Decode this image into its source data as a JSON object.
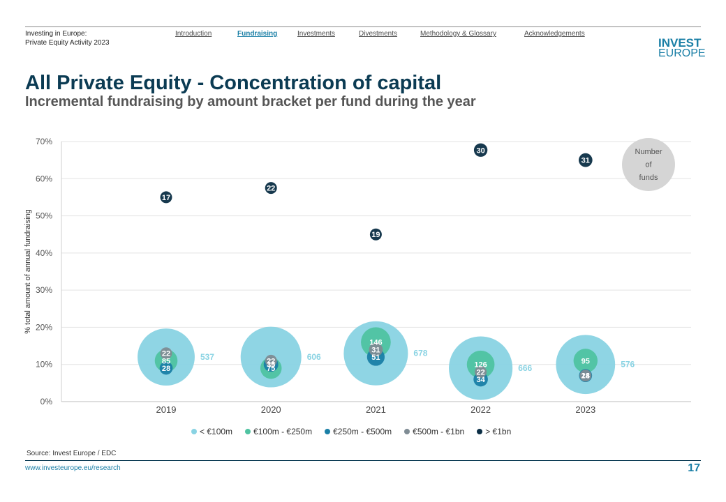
{
  "header": {
    "report_line1": "Investing in Europe:",
    "report_line2": "Private Equity Activity 2023",
    "nav": [
      "Introduction",
      "Fundraising",
      "Investments",
      "Divestments",
      "Methodology & Glossary",
      "Acknowledgements"
    ],
    "active_nav": "Fundraising",
    "logo_line1": "INVEST",
    "logo_line2": "EUROPE"
  },
  "page": {
    "title": "All Private Equity - Concentration of capital",
    "subtitle": "Incremental fundraising by amount bracket per fund during the year",
    "source": "Source: Invest Europe / EDC",
    "url": "www.investeurope.eu/research",
    "page_number": "17"
  },
  "chart_data": {
    "type": "scatter",
    "title": "",
    "xlabel": "",
    "ylabel": "% total amount of annual fundraising",
    "categories": [
      "2019",
      "2020",
      "2021",
      "2022",
      "2023"
    ],
    "yticks": [
      "0%",
      "10%",
      "20%",
      "30%",
      "40%",
      "50%",
      "60%",
      "70%"
    ],
    "ylim": [
      0,
      70
    ],
    "grid": true,
    "legend_position": "bottom",
    "size_legend_label": [
      "Number",
      "of",
      "funds"
    ],
    "series": [
      {
        "name": "< €100m",
        "color": "#89d3e3",
        "values": [
          12,
          12,
          13,
          9,
          10
        ],
        "funds": [
          537,
          606,
          678,
          666,
          576
        ]
      },
      {
        "name": "€100m - €250m",
        "color": "#4fc3a1",
        "values": [
          11,
          9,
          16,
          10,
          11
        ],
        "funds": [
          85,
          75,
          146,
          126,
          95
        ]
      },
      {
        "name": "€250m - €500m",
        "color": "#1a7fa6",
        "values": [
          9,
          10,
          12,
          6,
          7
        ],
        "funds": [
          28,
          35,
          51,
          34,
          28
        ]
      },
      {
        "name": "€500m - €1bn",
        "color": "#7f8c94",
        "values": [
          13,
          11,
          14,
          8,
          7
        ],
        "funds": [
          22,
          22,
          31,
          22,
          14
        ]
      },
      {
        "name": "> €1bn",
        "color": "#0b2e45",
        "values": [
          55,
          57.5,
          45,
          67.7,
          65
        ],
        "funds": [
          17,
          22,
          19,
          30,
          31
        ]
      }
    ],
    "colors": {
      "axis_text": "#555555",
      "grid": "#e3e3e3",
      "size_legend": "#d5d5d5"
    }
  }
}
